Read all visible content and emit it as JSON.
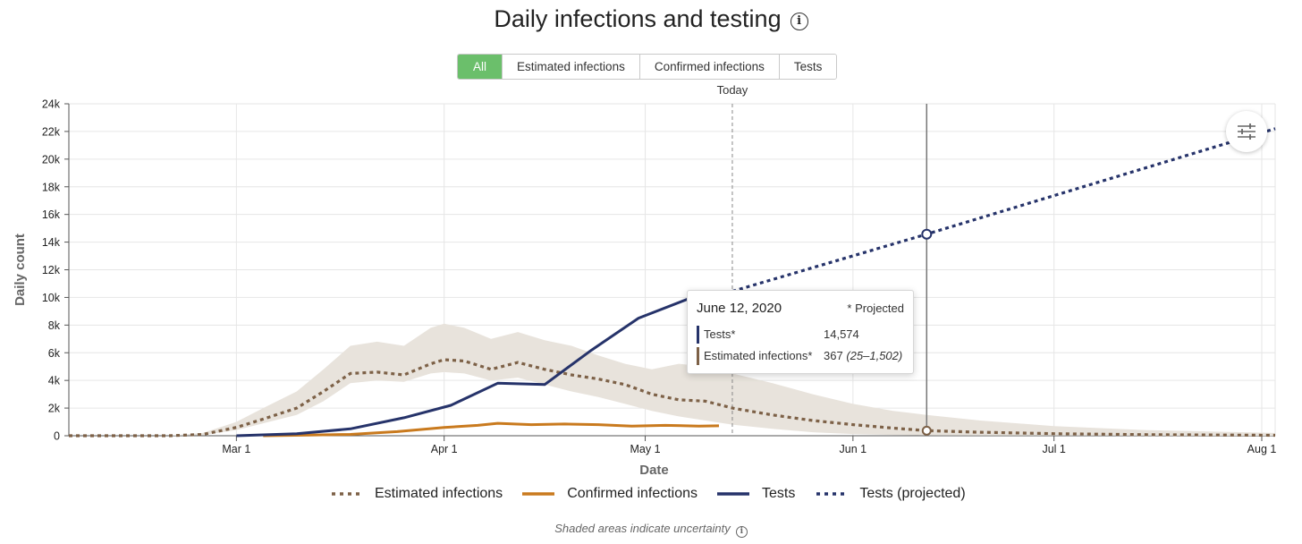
{
  "header": {
    "title": "Daily infections and testing",
    "info_icon": "info-icon"
  },
  "tabs": [
    {
      "label": "All",
      "active": true
    },
    {
      "label": "Estimated infections",
      "active": false
    },
    {
      "label": "Confirmed infections",
      "active": false
    },
    {
      "label": "Tests",
      "active": false
    }
  ],
  "today_label": "Today",
  "settings_icon": "sliders-icon",
  "colors": {
    "estimated": "#7d6147",
    "confirmed": "#c97a1e",
    "tests": "#26336a",
    "band": "#e8e3dc",
    "active_tab": "#6bbf6b"
  },
  "tooltip": {
    "date": "June 12, 2020",
    "note": "* Projected",
    "rows": [
      {
        "label": "Tests*",
        "value": "14,574",
        "range": ""
      },
      {
        "label": "Estimated infections*",
        "value": "367",
        "range": "(25–1,502)"
      }
    ]
  },
  "legend": [
    {
      "label": "Estimated infections",
      "style": "dotted",
      "color": "#7d6147"
    },
    {
      "label": "Confirmed infections",
      "style": "solid",
      "color": "#c97a1e"
    },
    {
      "label": "Tests",
      "style": "solid",
      "color": "#26336a"
    },
    {
      "label": "Tests (projected)",
      "style": "dotted",
      "color": "#26336a"
    }
  ],
  "footnote": "Shaded areas indicate uncertainty",
  "chart_data": {
    "type": "line",
    "title": "Daily infections and testing",
    "xlabel": "Date",
    "ylabel": "Daily count",
    "x_ticks": [
      "Mar 1",
      "Apr 1",
      "May 1",
      "Jun 1",
      "Jul 1",
      "Aug 1"
    ],
    "y_ticks": [
      "0",
      "2k",
      "4k",
      "6k",
      "8k",
      "10k",
      "12k",
      "14k",
      "16k",
      "18k",
      "20k",
      "22k",
      "24k"
    ],
    "ylim": [
      0,
      24000
    ],
    "xlim": [
      "2020-02-05",
      "2020-08-03"
    ],
    "today": "2020-05-14",
    "highlight_date": "2020-06-12",
    "grid": true,
    "legend_position": "bottom",
    "series": [
      {
        "name": "Estimated infections",
        "style": "dotted",
        "x": [
          "2020-02-05",
          "2020-02-20",
          "2020-02-25",
          "2020-03-01",
          "2020-03-05",
          "2020-03-10",
          "2020-03-14",
          "2020-03-18",
          "2020-03-22",
          "2020-03-26",
          "2020-03-30",
          "2020-04-01",
          "2020-04-04",
          "2020-04-08",
          "2020-04-12",
          "2020-04-16",
          "2020-04-20",
          "2020-04-24",
          "2020-04-28",
          "2020-05-02",
          "2020-05-06",
          "2020-05-10",
          "2020-05-14",
          "2020-05-20",
          "2020-05-26",
          "2020-06-01",
          "2020-06-07",
          "2020-06-12",
          "2020-06-20",
          "2020-07-01",
          "2020-07-15",
          "2020-08-03"
        ],
        "values": [
          0,
          0,
          100,
          600,
          1200,
          2000,
          3200,
          4500,
          4600,
          4400,
          5200,
          5500,
          5400,
          4800,
          5300,
          4800,
          4400,
          4100,
          3700,
          3000,
          2600,
          2500,
          2000,
          1500,
          1100,
          800,
          550,
          367,
          250,
          150,
          80,
          30
        ]
      },
      {
        "name": "Estimated infections uncertainty",
        "style": "band",
        "x": [
          "2020-02-05",
          "2020-02-20",
          "2020-02-25",
          "2020-03-01",
          "2020-03-05",
          "2020-03-10",
          "2020-03-14",
          "2020-03-18",
          "2020-03-22",
          "2020-03-26",
          "2020-03-30",
          "2020-04-01",
          "2020-04-04",
          "2020-04-08",
          "2020-04-12",
          "2020-04-16",
          "2020-04-20",
          "2020-04-24",
          "2020-04-28",
          "2020-05-02",
          "2020-05-06",
          "2020-05-10",
          "2020-05-14",
          "2020-05-20",
          "2020-05-26",
          "2020-06-01",
          "2020-06-07",
          "2020-06-12",
          "2020-06-20",
          "2020-07-01",
          "2020-07-15",
          "2020-08-03"
        ],
        "lower": [
          0,
          0,
          50,
          400,
          900,
          1500,
          2500,
          3800,
          4000,
          3900,
          4500,
          4600,
          4500,
          4000,
          4200,
          3700,
          3200,
          2800,
          2300,
          1800,
          1400,
          1100,
          800,
          500,
          250,
          120,
          60,
          25,
          15,
          10,
          5,
          0
        ],
        "upper": [
          0,
          0,
          200,
          1000,
          2000,
          3200,
          4800,
          6500,
          6800,
          6500,
          7800,
          8100,
          7800,
          7000,
          7500,
          6900,
          6500,
          5800,
          5200,
          4800,
          5200,
          5000,
          4500,
          3800,
          3000,
          2300,
          1800,
          1502,
          1100,
          700,
          400,
          200
        ]
      },
      {
        "name": "Confirmed infections",
        "style": "solid",
        "x": [
          "2020-03-05",
          "2020-03-12",
          "2020-03-18",
          "2020-03-25",
          "2020-04-01",
          "2020-04-06",
          "2020-04-09",
          "2020-04-14",
          "2020-04-19",
          "2020-04-24",
          "2020-04-29",
          "2020-05-04",
          "2020-05-09",
          "2020-05-12"
        ],
        "values": [
          0,
          50,
          100,
          300,
          600,
          750,
          900,
          800,
          850,
          800,
          700,
          750,
          700,
          720
        ]
      },
      {
        "name": "Tests",
        "style": "solid",
        "x": [
          "2020-03-01",
          "2020-03-10",
          "2020-03-18",
          "2020-03-26",
          "2020-04-02",
          "2020-04-09",
          "2020-04-16",
          "2020-04-23",
          "2020-04-30",
          "2020-05-08",
          "2020-05-13"
        ],
        "values": [
          0,
          150,
          500,
          1300,
          2200,
          3800,
          3700,
          6200,
          8500,
          10000,
          10300
        ]
      },
      {
        "name": "Tests (projected)",
        "style": "dotted",
        "x": [
          "2020-05-13",
          "2020-06-12",
          "2020-08-03"
        ],
        "values": [
          10300,
          14574,
          22200
        ]
      }
    ]
  }
}
